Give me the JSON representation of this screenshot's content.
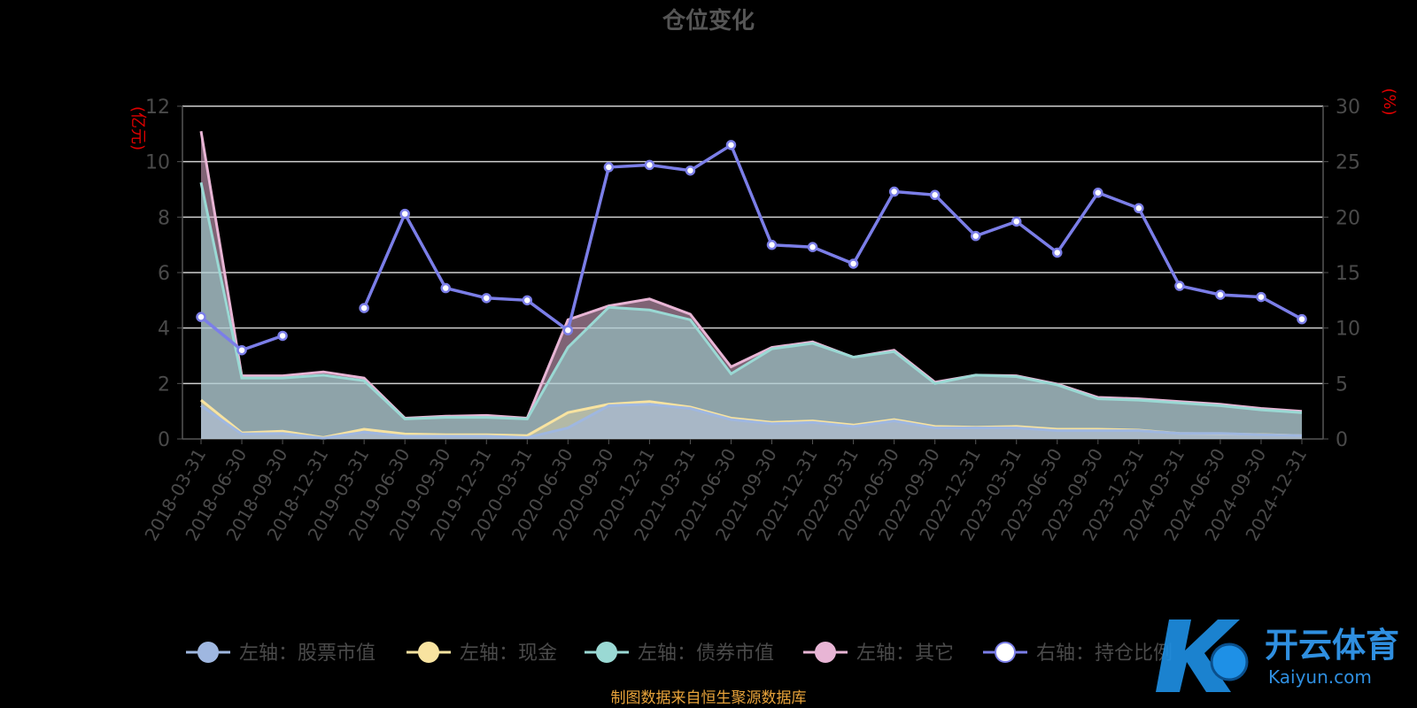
{
  "chart_data": {
    "type": "area",
    "title": "仓位变化",
    "left_axis_unit": "(亿元)",
    "right_axis_unit": "(%)",
    "left_ylim": [
      0,
      12
    ],
    "left_yticks": [
      0,
      2,
      4,
      6,
      8,
      10,
      12
    ],
    "right_ylim": [
      0,
      30
    ],
    "right_yticks": [
      0,
      5,
      10,
      15,
      20,
      25,
      30
    ],
    "grid": true,
    "legend_position": "bottom",
    "categories": [
      "2018-03-31",
      "2018-06-30",
      "2018-09-30",
      "2018-12-31",
      "2019-03-31",
      "2019-06-30",
      "2019-09-30",
      "2019-12-31",
      "2020-03-31",
      "2020-06-30",
      "2020-09-30",
      "2020-12-31",
      "2021-03-31",
      "2021-06-30",
      "2021-09-30",
      "2021-12-31",
      "2022-03-31",
      "2022-06-30",
      "2022-09-30",
      "2022-12-31",
      "2023-03-31",
      "2023-06-30",
      "2023-09-30",
      "2023-12-31",
      "2024-03-31",
      "2024-06-30",
      "2024-09-30",
      "2024-12-31"
    ],
    "series": [
      {
        "name": "左轴：股票市值",
        "axis": "left",
        "color": "#9fb7e0",
        "values": [
          1.2,
          0.18,
          0.2,
          0.03,
          0.25,
          0.1,
          0.1,
          0.1,
          0.05,
          0.4,
          1.2,
          1.25,
          1.1,
          0.7,
          0.55,
          0.6,
          0.45,
          0.65,
          0.4,
          0.4,
          0.4,
          0.3,
          0.3,
          0.3,
          0.2,
          0.2,
          0.15,
          0.12
        ]
      },
      {
        "name": "左轴：现金",
        "axis": "left",
        "color": "#f8e3a0",
        "values": [
          1.4,
          0.22,
          0.28,
          0.05,
          0.35,
          0.18,
          0.15,
          0.15,
          0.12,
          0.95,
          1.25,
          1.35,
          1.15,
          0.75,
          0.6,
          0.65,
          0.5,
          0.7,
          0.45,
          0.42,
          0.45,
          0.35,
          0.35,
          0.32,
          0.2,
          0.18,
          0.16,
          0.12
        ]
      },
      {
        "name": "左轴：债券市值",
        "axis": "left",
        "color": "#9ad9d4",
        "values": [
          9.25,
          2.2,
          2.2,
          2.3,
          2.1,
          0.72,
          0.78,
          0.78,
          0.72,
          3.3,
          4.75,
          4.65,
          4.3,
          2.35,
          3.25,
          3.45,
          2.95,
          3.15,
          2.0,
          2.3,
          2.25,
          1.95,
          1.45,
          1.4,
          1.3,
          1.2,
          1.05,
          0.95
        ]
      },
      {
        "name": "左轴：其它",
        "axis": "left",
        "color": "#e8b5d5",
        "values": [
          11.1,
          2.28,
          2.28,
          2.42,
          2.2,
          0.75,
          0.82,
          0.85,
          0.75,
          4.3,
          4.8,
          5.05,
          4.5,
          2.6,
          3.3,
          3.5,
          2.95,
          3.2,
          2.05,
          2.3,
          2.28,
          1.98,
          1.5,
          1.45,
          1.35,
          1.25,
          1.1,
          1.0
        ]
      },
      {
        "name": "右轴：持仓比例",
        "axis": "right",
        "color": "#7b7ee8",
        "values": [
          11.0,
          8.0,
          9.3,
          null,
          11.8,
          20.3,
          13.6,
          12.7,
          12.5,
          9.8,
          24.5,
          24.7,
          24.2,
          26.5,
          17.5,
          17.3,
          15.8,
          22.3,
          22.0,
          18.3,
          19.6,
          16.8,
          22.2,
          20.8,
          13.8,
          13.0,
          12.8,
          10.8
        ]
      }
    ]
  },
  "footer": {
    "source": "制图数据来自恒生聚源数据库"
  },
  "watermark": {
    "cn": "开云体育",
    "en": "Kaiyun.com"
  }
}
